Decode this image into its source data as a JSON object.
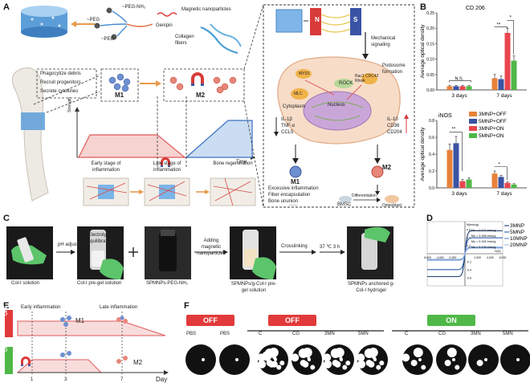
{
  "panels": {
    "A": "A",
    "B": "B",
    "C": "C",
    "D": "D",
    "E": "E",
    "F": "F"
  },
  "panelA": {
    "peg_nh2": "~PEG-NH₂",
    "peg_a": "~PEG",
    "peg_b": "~PEG",
    "genipin": "Genipin",
    "magnetic_np": "Magnetic nanoparticles",
    "collagen": "Collagen fibers",
    "functions": [
      "Phagocytize debris",
      "Recruit progenitors",
      "Secrete cytokines"
    ],
    "m1": "M1",
    "m2": "M2",
    "strength_axis": "Strength",
    "time_axis": "Time",
    "stages": [
      "Early stage of inflammation",
      "Late stage of inflammation",
      "Bone regeneration"
    ],
    "cell": {
      "n": "N",
      "s": "S",
      "mech": "Mechanical signaling",
      "myd1": "MYD1",
      "rac": "Rac1 CDC42 RhoA",
      "podosome": "Podosome formation",
      "rock": "ROCK",
      "mlc": "MLC",
      "cytoplasm": "Cytoplasm",
      "nucleus": "Nucleus",
      "cyto_left": [
        "IL-1β",
        "TNF-α",
        "CCL5"
      ],
      "cyto_right": [
        "IL-10",
        "CD36",
        "CD204"
      ],
      "m1": "M1",
      "m2": "M2",
      "m1_effects": [
        "Excessive inflammation",
        "Fiber encapsulation",
        "Bone ununion"
      ],
      "ellipsis": "......",
      "bmsc": "BMSC",
      "differentiation": "Differentiation",
      "osteoblast": "Osteoblast"
    }
  },
  "panelB": {
    "chart_data": [
      {
        "type": "bar",
        "title": "CD 206",
        "ylabel": "Average optical density",
        "categories": [
          "3 days",
          "7 days"
        ],
        "ylim": [
          0,
          0.25
        ],
        "yticks": [
          "0.00",
          "0.05",
          "0.10",
          "0.15",
          "0.20",
          "0.25"
        ],
        "series": [
          {
            "name": "3MNP+OFF",
            "values": [
              0.012,
              0.038
            ]
          },
          {
            "name": "5MNP+OFF",
            "values": [
              0.012,
              0.035
            ]
          },
          {
            "name": "3MNP+ON",
            "values": [
              0.012,
              0.185
            ]
          },
          {
            "name": "5MNP+ON",
            "values": [
              0.012,
              0.095
            ]
          }
        ],
        "errors": [
          [
            0.003,
            0.012
          ],
          [
            0.003,
            0.01
          ],
          [
            0.003,
            0.015
          ],
          [
            0.003,
            0.015
          ]
        ],
        "annotations": [
          "N.S.",
          "**",
          "*"
        ]
      },
      {
        "type": "bar",
        "title": "iNOS",
        "ylabel": "Average optical density",
        "categories": [
          "3 days",
          "7 days"
        ],
        "ylim": [
          0,
          0.8
        ],
        "yticks": [
          "0.0",
          "0.2",
          "0.4",
          "0.6",
          "0.8"
        ],
        "series": [
          {
            "name": "3MNP+OFF",
            "values": [
              0.45,
              0.17
            ]
          },
          {
            "name": "5MNP+OFF",
            "values": [
              0.53,
              0.13
            ]
          },
          {
            "name": "3MNP+ON",
            "values": [
              0.08,
              0.06
            ]
          },
          {
            "name": "5MNP+ON",
            "values": [
              0.1,
              0.04
            ]
          }
        ],
        "errors": [
          [
            0.07,
            0.03
          ],
          [
            0.08,
            0.02
          ],
          [
            0.02,
            0.01
          ],
          [
            0.02,
            0.01
          ]
        ],
        "annotations": [
          "**",
          "*"
        ]
      }
    ],
    "colors": [
      "#E8813A",
      "#3A53A4",
      "#E8464E",
      "#4FB848"
    ],
    "legend": [
      "3MNP+OFF",
      "5MNP+OFF",
      "3MNP+ON",
      "5MNP+ON"
    ]
  },
  "panelC": {
    "steps": [
      "Col-I solution",
      "pH adjustion",
      "Electrolytes equilibration",
      "Col-I pre-gel solution",
      "+",
      "SPMNPs-PEG-NH₂",
      "Adding magnetic nanoparticles",
      "SPMNPs/g-Col-I pre-gel solution",
      "Crosslinking",
      "37 ℃ 3 h",
      "SPMNPs anchored g-Col-I hydrogel"
    ]
  },
  "panelD": {
    "chart_data": {
      "type": "line",
      "xlabel": "H(G)",
      "ylabel": "M(emu/g)",
      "xlim": [
        -6000,
        6000
      ],
      "ylim": [
        -0.8,
        0.8
      ],
      "xticks": [
        "-6,000",
        "-4,000",
        "-2,000",
        "2,000",
        "4,000",
        "6,000"
      ],
      "yticks": [
        "0.6",
        "0.4",
        "0.2",
        "-0.2",
        "-0.4",
        "-0.6"
      ],
      "series": [
        {
          "name": "3MNP",
          "ms": 0.571,
          "label": "Ms = 0.571 emu/g"
        },
        {
          "name": "5MNP",
          "ms": 0.396,
          "label": "Ms = 0.396 emu/g"
        },
        {
          "name": "10MNP",
          "ms": 0.161,
          "label": "Ms = 0.161 emu/g"
        },
        {
          "name": "20MNP",
          "ms": 0.139,
          "label": "Ms = 0.139 emu/g"
        }
      ],
      "colors": [
        "#1F3F78",
        "#2F5FA8",
        "#5A86C8",
        "#9DBDE6"
      ]
    }
  },
  "panelE": {
    "off": "OFF",
    "on": "ON",
    "early": "Early inflammation",
    "late": "Late inflammation",
    "m1": "M1",
    "m2": "M2",
    "day": "Day",
    "ticks": [
      "1",
      "3",
      "7"
    ]
  },
  "panelF": {
    "off1": "OFF",
    "off2": "OFF",
    "on": "ON",
    "groups": [
      "PBS",
      "PBS",
      "C",
      "CG",
      "3MN",
      "5MN",
      "C",
      "CG",
      "3MN",
      "5MN"
    ]
  }
}
